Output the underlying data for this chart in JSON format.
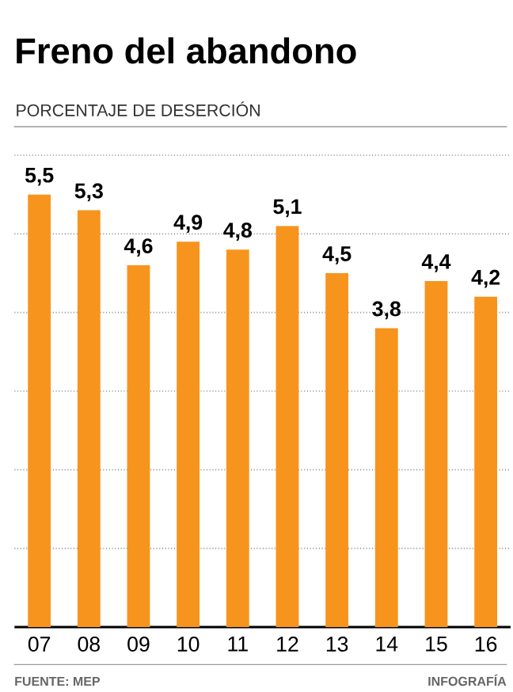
{
  "chart_data": {
    "type": "bar",
    "title": "Freno del abandono",
    "subtitle": "PORCENTAJE DE DESERCIÓN",
    "categories": [
      "07",
      "08",
      "09",
      "10",
      "11",
      "12",
      "13",
      "14",
      "15",
      "16"
    ],
    "values": [
      5.5,
      5.3,
      4.6,
      4.9,
      4.8,
      5.1,
      4.5,
      3.8,
      4.4,
      4.2
    ],
    "value_labels": [
      "5,5",
      "5,3",
      "4,6",
      "4,9",
      "4,8",
      "5,1",
      "4,5",
      "3,8",
      "4,4",
      "4,2"
    ],
    "color": "#f7941d",
    "ylim": [
      0,
      6
    ],
    "yticks": [
      {
        "value": 1,
        "label": null
      },
      {
        "value": 2,
        "label": null
      },
      {
        "value": 3,
        "label": null
      },
      {
        "value": 4,
        "label": null
      },
      {
        "value": 5,
        "label": null
      },
      {
        "value": 6,
        "label": null
      }
    ],
    "tick_labels": "x",
    "grid": "y",
    "annotations": [
      "FUENTE: MEP",
      "INFOGRAFÍA"
    ]
  }
}
